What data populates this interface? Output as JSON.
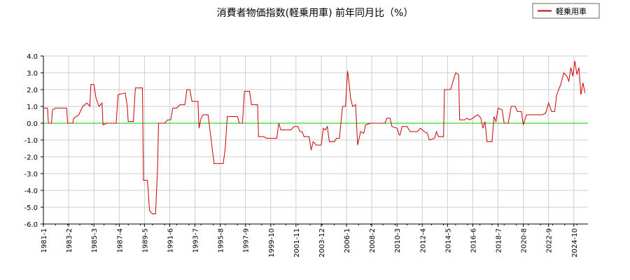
{
  "chart_data": {
    "type": "line",
    "title": "消費者物価指数(軽乗用車) 前年同月比（%）",
    "xlabel": "",
    "ylabel": "",
    "ylim": [
      -6.0,
      4.0
    ],
    "y_ticks": [
      "4.0",
      "3.0",
      "2.0",
      "1.0",
      "0.0",
      "-1.0",
      "-2.0",
      "-3.0",
      "-4.0",
      "-5.0",
      "-6.0"
    ],
    "x_range": [
      "1981-1",
      "2025-12"
    ],
    "x_ticks": [
      "1981-1",
      "1983-2",
      "1985-3",
      "1987-4",
      "1989-5",
      "1991-6",
      "1993-7",
      "1995-8",
      "1997-9",
      "1999-10",
      "2001-11",
      "2003-12",
      "2006-1",
      "2008-2",
      "2010-3",
      "2012-4",
      "2014-5",
      "2016-6",
      "2018-7",
      "2020-8",
      "2022-9",
      "2024-10"
    ],
    "grid": true,
    "legend_position": "top-right",
    "zero_line_color": "#00cc00",
    "series": [
      {
        "name": "軽乗用車",
        "color": "#cc0000",
        "points": [
          [
            "1981-1",
            0.9
          ],
          [
            "1981-5",
            0.9
          ],
          [
            "1981-6",
            0.0
          ],
          [
            "1981-9",
            0.0
          ],
          [
            "1981-10",
            0.8
          ],
          [
            "1982-1",
            0.9
          ],
          [
            "1982-12",
            0.9
          ],
          [
            "1983-1",
            0.0
          ],
          [
            "1983-6",
            0.0
          ],
          [
            "1983-7",
            0.3
          ],
          [
            "1983-12",
            0.5
          ],
          [
            "1984-4",
            1.0
          ],
          [
            "1984-8",
            1.2
          ],
          [
            "1984-11",
            1.0
          ],
          [
            "1984-12",
            2.3
          ],
          [
            "1985-3",
            2.3
          ],
          [
            "1985-5",
            1.5
          ],
          [
            "1985-8",
            1.0
          ],
          [
            "1985-11",
            1.2
          ],
          [
            "1985-12",
            -0.1
          ],
          [
            "1986-4",
            0.0
          ],
          [
            "1987-1",
            0.0
          ],
          [
            "1987-3",
            1.7
          ],
          [
            "1987-10",
            1.8
          ],
          [
            "1987-12",
            1.0
          ],
          [
            "1988-1",
            0.1
          ],
          [
            "1988-6",
            0.1
          ],
          [
            "1988-8",
            2.1
          ],
          [
            "1989-3",
            2.1
          ],
          [
            "1989-4",
            -3.4
          ],
          [
            "1989-8",
            -3.4
          ],
          [
            "1989-10",
            -5.2
          ],
          [
            "1990-1",
            -5.4
          ],
          [
            "1990-4",
            -5.4
          ],
          [
            "1990-6",
            -2.7
          ],
          [
            "1990-7",
            0.0
          ],
          [
            "1991-1",
            0.0
          ],
          [
            "1991-4",
            0.2
          ],
          [
            "1991-7",
            0.2
          ],
          [
            "1991-9",
            0.9
          ],
          [
            "1992-1",
            0.9
          ],
          [
            "1992-4",
            1.1
          ],
          [
            "1992-9",
            1.1
          ],
          [
            "1992-11",
            2.0
          ],
          [
            "1993-2",
            2.0
          ],
          [
            "1993-4",
            1.3
          ],
          [
            "1993-10",
            1.3
          ],
          [
            "1993-11",
            -0.3
          ],
          [
            "1994-1",
            0.3
          ],
          [
            "1994-3",
            0.5
          ],
          [
            "1994-8",
            0.5
          ],
          [
            "1994-12",
            -1.5
          ],
          [
            "1995-2",
            -2.4
          ],
          [
            "1995-11",
            -2.4
          ],
          [
            "1996-1",
            -1.5
          ],
          [
            "1996-3",
            0.4
          ],
          [
            "1996-6",
            0.4
          ],
          [
            "1997-1",
            0.4
          ],
          [
            "1997-3",
            0.0
          ],
          [
            "1997-6",
            0.0
          ],
          [
            "1997-8",
            1.9
          ],
          [
            "1998-1",
            1.9
          ],
          [
            "1998-3",
            1.1
          ],
          [
            "1998-9",
            1.1
          ],
          [
            "1998-10",
            -0.8
          ],
          [
            "1999-3",
            -0.8
          ],
          [
            "1999-6",
            -0.9
          ],
          [
            "2000-4",
            -0.9
          ],
          [
            "2000-6",
            0.0
          ],
          [
            "2000-8",
            -0.4
          ],
          [
            "2001-6",
            -0.4
          ],
          [
            "2001-9",
            -0.2
          ],
          [
            "2002-1",
            -0.2
          ],
          [
            "2002-3",
            -0.5
          ],
          [
            "2002-5",
            -0.5
          ],
          [
            "2002-7",
            -0.8
          ],
          [
            "2002-12",
            -0.8
          ],
          [
            "2003-2",
            -1.6
          ],
          [
            "2003-4",
            -1.1
          ],
          [
            "2003-7",
            -1.3
          ],
          [
            "2003-12",
            -1.3
          ],
          [
            "2004-2",
            -0.3
          ],
          [
            "2004-4",
            -0.4
          ],
          [
            "2004-6",
            -0.2
          ],
          [
            "2004-8",
            -1.1
          ],
          [
            "2005-1",
            -1.1
          ],
          [
            "2005-3",
            -0.9
          ],
          [
            "2005-6",
            -0.9
          ],
          [
            "2005-9",
            1.0
          ],
          [
            "2005-12",
            1.0
          ],
          [
            "2006-2",
            3.1
          ],
          [
            "2006-3",
            2.7
          ],
          [
            "2006-5",
            1.5
          ],
          [
            "2006-7",
            1.0
          ],
          [
            "2006-10",
            1.1
          ],
          [
            "2006-12",
            -1.3
          ],
          [
            "2007-3",
            -0.5
          ],
          [
            "2007-6",
            -0.6
          ],
          [
            "2007-8",
            -0.1
          ],
          [
            "2008-1",
            0.0
          ],
          [
            "2009-3",
            0.0
          ],
          [
            "2009-5",
            0.3
          ],
          [
            "2009-8",
            0.3
          ],
          [
            "2009-10",
            -0.2
          ],
          [
            "2010-3",
            -0.3
          ],
          [
            "2010-5",
            -0.7
          ],
          [
            "2010-6",
            -0.7
          ],
          [
            "2010-8",
            -0.2
          ],
          [
            "2011-1",
            -0.2
          ],
          [
            "2011-4",
            -0.5
          ],
          [
            "2011-7",
            -0.5
          ],
          [
            "2011-11",
            -0.5
          ],
          [
            "2012-2",
            -0.3
          ],
          [
            "2012-6",
            -0.5
          ],
          [
            "2012-9",
            -0.6
          ],
          [
            "2012-11",
            -1.0
          ],
          [
            "2013-4",
            -0.9
          ],
          [
            "2013-6",
            -0.5
          ],
          [
            "2013-8",
            -0.8
          ],
          [
            "2014-1",
            -0.8
          ],
          [
            "2014-2",
            2.0
          ],
          [
            "2014-8",
            2.0
          ],
          [
            "2014-10",
            2.4
          ],
          [
            "2015-1",
            3.0
          ],
          [
            "2015-4",
            2.9
          ],
          [
            "2015-5",
            0.2
          ],
          [
            "2015-10",
            0.2
          ],
          [
            "2015-12",
            0.3
          ],
          [
            "2016-3",
            0.2
          ],
          [
            "2016-6",
            0.3
          ],
          [
            "2016-8",
            0.4
          ],
          [
            "2016-11",
            0.5
          ],
          [
            "2017-2",
            0.3
          ],
          [
            "2017-4",
            -0.3
          ],
          [
            "2017-6",
            0.1
          ],
          [
            "2017-8",
            -1.1
          ],
          [
            "2018-1",
            -1.1
          ],
          [
            "2018-3",
            0.4
          ],
          [
            "2018-5",
            0.1
          ],
          [
            "2018-7",
            0.9
          ],
          [
            "2018-11",
            0.8
          ],
          [
            "2019-1",
            0.0
          ],
          [
            "2019-5",
            0.0
          ],
          [
            "2019-8",
            1.0
          ],
          [
            "2019-12",
            1.0
          ],
          [
            "2020-2",
            0.7
          ],
          [
            "2020-6",
            0.7
          ],
          [
            "2020-8",
            -0.1
          ],
          [
            "2020-11",
            0.5
          ],
          [
            "2021-3",
            0.5
          ],
          [
            "2022-3",
            0.5
          ],
          [
            "2022-6",
            0.6
          ],
          [
            "2022-9",
            1.2
          ],
          [
            "2022-12",
            0.7
          ],
          [
            "2023-3",
            0.7
          ],
          [
            "2023-5",
            1.7
          ],
          [
            "2023-7",
            2.0
          ],
          [
            "2023-9",
            2.3
          ],
          [
            "2023-12",
            3.0
          ],
          [
            "2024-3",
            2.8
          ],
          [
            "2024-5",
            2.5
          ],
          [
            "2024-7",
            3.3
          ],
          [
            "2024-9",
            2.8
          ],
          [
            "2024-11",
            3.7
          ],
          [
            "2025-1",
            2.9
          ],
          [
            "2025-3",
            3.3
          ],
          [
            "2025-5",
            1.7
          ],
          [
            "2025-7",
            2.4
          ],
          [
            "2025-9",
            1.8
          ]
        ]
      }
    ]
  }
}
